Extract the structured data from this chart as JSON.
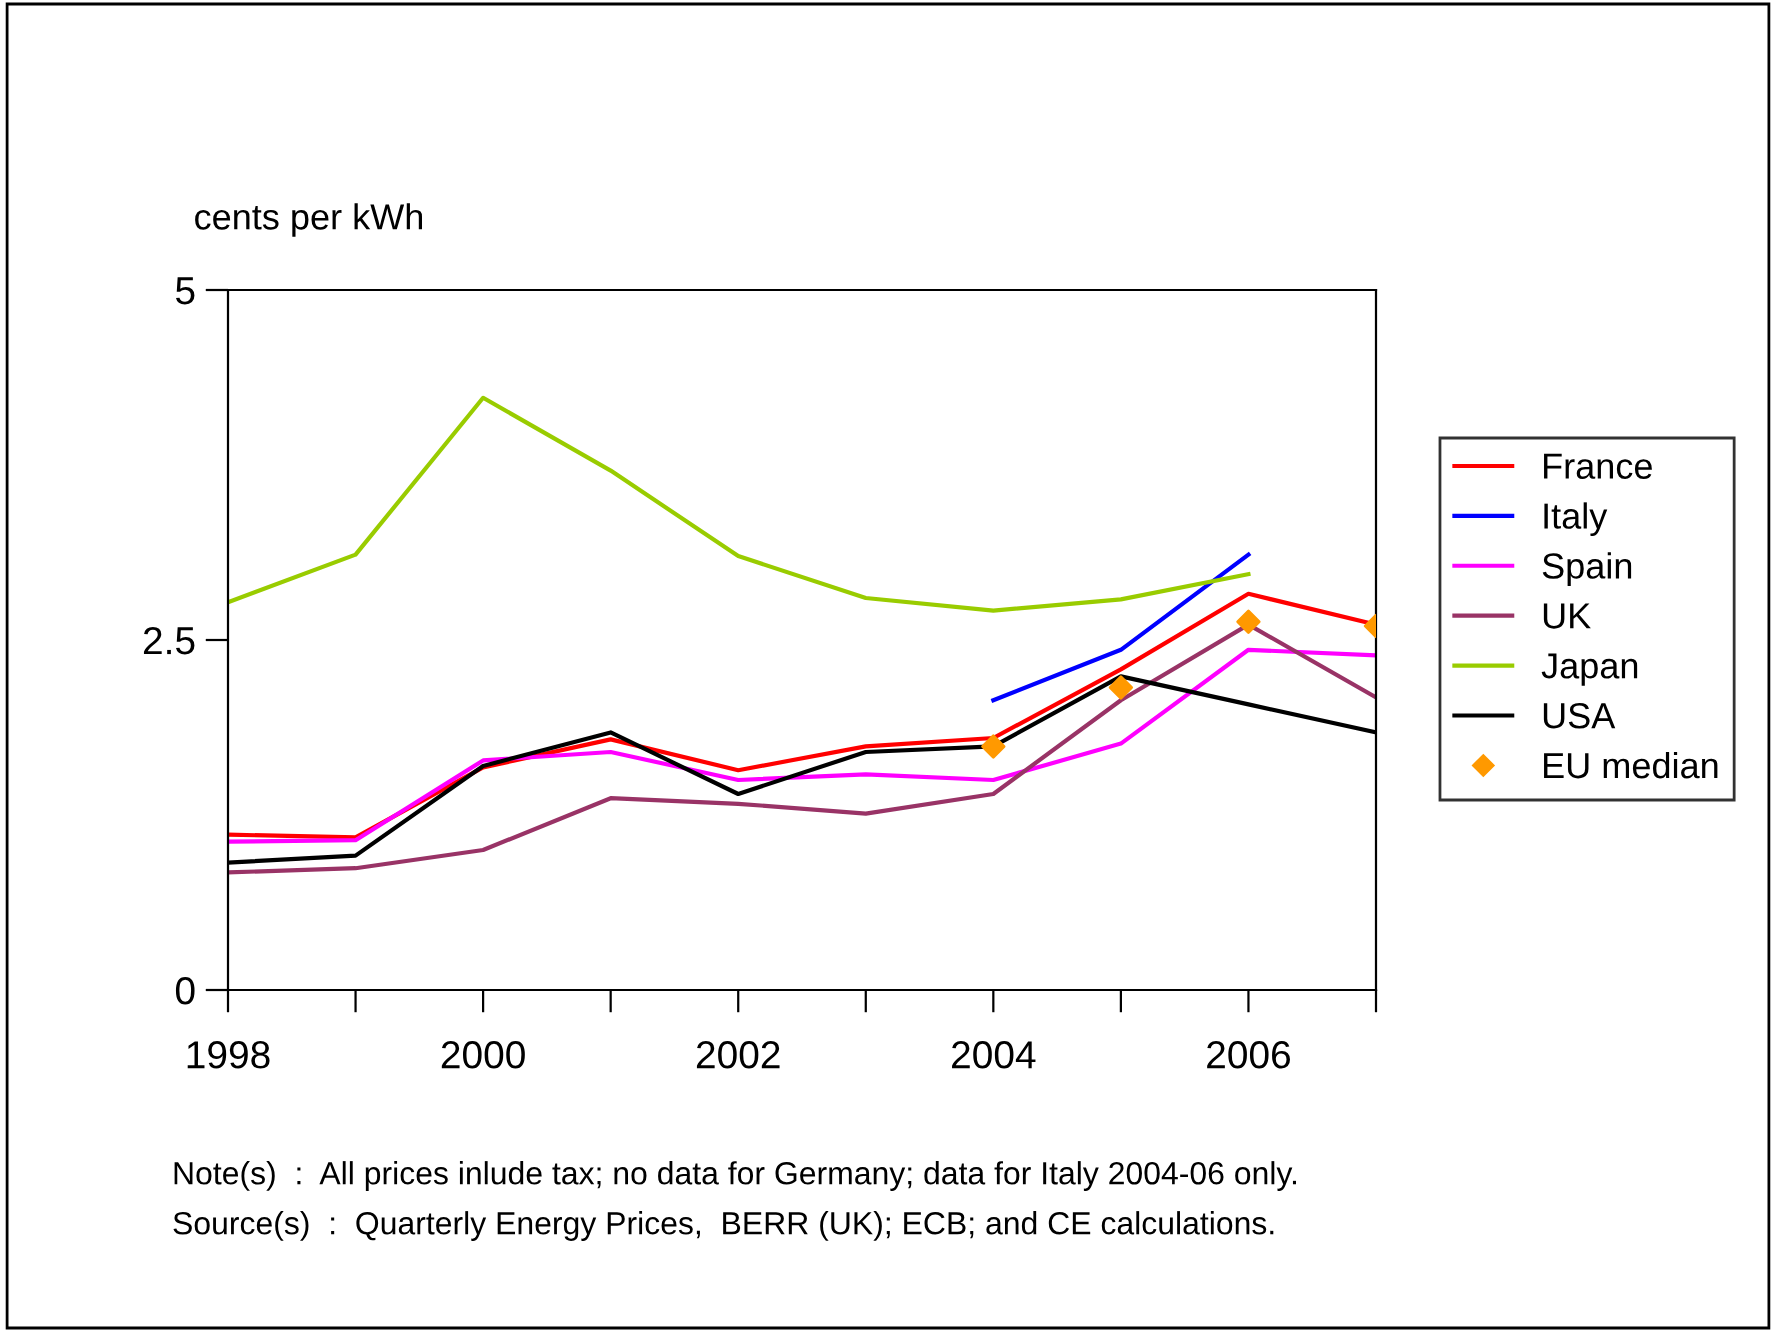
{
  "chart_data": {
    "type": "line",
    "ylabel": "cents per kWh",
    "x": [
      1998,
      1999,
      2000,
      2001,
      2002,
      2003,
      2004,
      2005,
      2006,
      2007
    ],
    "series": [
      {
        "name": "France",
        "color": "#ff0000",
        "values": [
          1.11,
          1.09,
          1.59,
          1.79,
          1.57,
          1.74,
          1.8,
          2.29,
          2.83,
          2.61
        ]
      },
      {
        "name": "Italy",
        "color": "#0000ff",
        "values": [
          null,
          null,
          null,
          null,
          null,
          null,
          2.07,
          2.43,
          3.11,
          null
        ]
      },
      {
        "name": "Spain",
        "color": "#ff00ff",
        "values": [
          1.06,
          1.07,
          1.64,
          1.7,
          1.5,
          1.54,
          1.5,
          1.76,
          2.43,
          2.39
        ]
      },
      {
        "name": "UK",
        "color": "#993366",
        "values": [
          0.84,
          0.87,
          1.0,
          1.37,
          1.33,
          1.26,
          1.4,
          2.07,
          2.61,
          2.09
        ]
      },
      {
        "name": "Japan",
        "color": "#99cc00",
        "values": [
          2.77,
          3.11,
          4.23,
          3.71,
          3.1,
          2.8,
          2.71,
          2.79,
          2.97,
          null
        ]
      },
      {
        "name": "USA",
        "color": "#000000",
        "values": [
          0.91,
          0.96,
          1.6,
          1.84,
          1.4,
          1.7,
          1.74,
          2.24,
          2.04,
          1.84
        ]
      },
      {
        "name": "EU median",
        "color": "#ff9900",
        "type": "scatter",
        "marker": "diamond",
        "values": [
          null,
          null,
          null,
          null,
          null,
          null,
          1.74,
          2.16,
          2.63,
          2.6
        ]
      }
    ],
    "xlim": [
      1998,
      2007
    ],
    "xticks": [
      1998,
      {
        "value": 1999,
        "label": null
      },
      2000,
      {
        "value": 2001,
        "label": null
      },
      2002,
      {
        "value": 2003,
        "label": null
      },
      2004,
      {
        "value": 2005,
        "label": null
      },
      2006,
      {
        "value": 2007,
        "label": null
      }
    ],
    "ylim": [
      0,
      5
    ],
    "yticks": [
      0,
      2.5,
      5
    ],
    "grid": false,
    "legend": "right",
    "marker": "none",
    "annotations": [
      "Note(s)  :  All prices inlude tax; no data for Germany; data for Italy 2004-06 only.",
      "Source(s)  :  Quarterly Energy Prices,  BERR (UK); ECB; and CE calculations."
    ]
  }
}
